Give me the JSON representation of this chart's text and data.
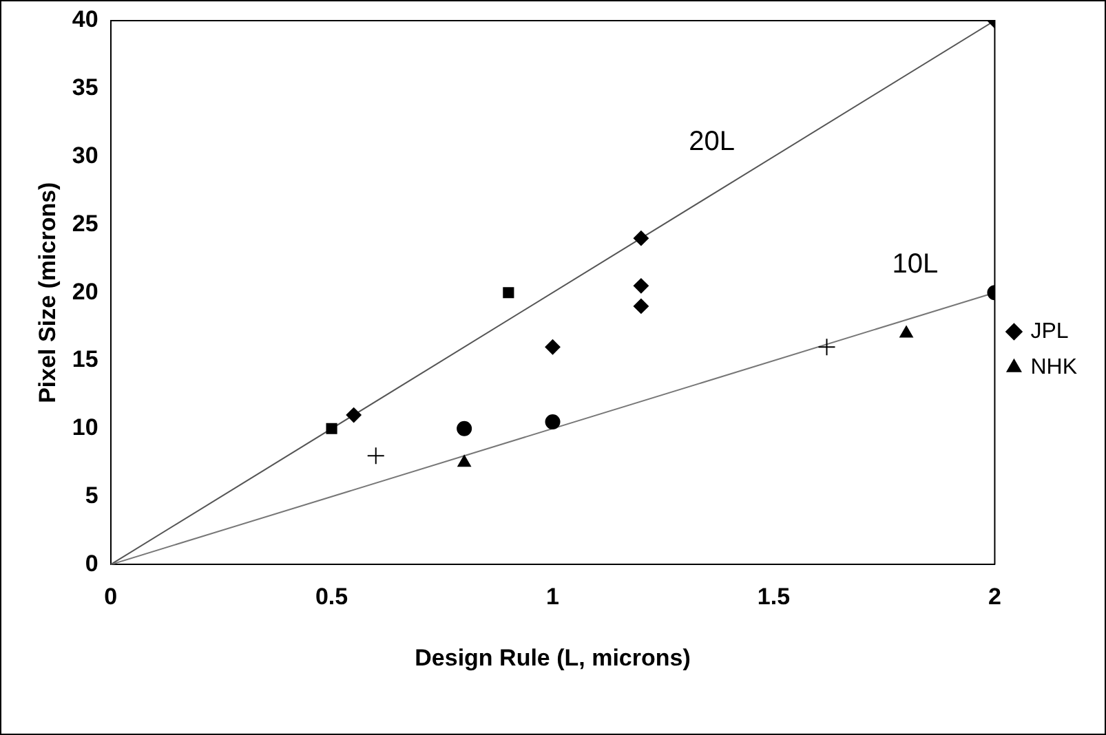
{
  "chart_data": {
    "type": "scatter",
    "xlabel": "Design Rule (L, microns)",
    "ylabel": "Pixel Size (microns)",
    "xlim": [
      0,
      2
    ],
    "xticks": [
      0,
      0.5,
      1,
      1.5,
      2
    ],
    "ylim": [
      0,
      40
    ],
    "yticks": [
      0,
      5,
      10,
      15,
      20,
      25,
      30,
      35,
      40
    ],
    "grid": false,
    "legend": "right",
    "series": [
      {
        "name": "JPL",
        "color": "#000000",
        "marker": "diamond",
        "x": [
          0.55,
          1,
          1.2,
          1.2,
          1.2,
          2
        ],
        "values": [
          11,
          16,
          24,
          20.5,
          19,
          40
        ]
      },
      {
        "color": "#000000",
        "marker": "square",
        "x": [
          0.5,
          0.9
        ],
        "values": [
          10,
          20
        ]
      },
      {
        "name": "NHK",
        "color": "#000000",
        "marker": "triangle",
        "x": [
          0.8,
          1.8
        ],
        "values": [
          7.5,
          17
        ]
      },
      {
        "color": "#000000",
        "marker": "circle",
        "x": [
          0.8,
          1,
          2
        ],
        "values": [
          10,
          10.5,
          20
        ]
      },
      {
        "color": "#000000",
        "marker": "cross",
        "x": [
          0.6
        ],
        "values": [
          8
        ]
      },
      {
        "color": "#000000",
        "marker": "cross",
        "x": [
          1.62
        ],
        "values": [
          16
        ]
      },
      {
        "type": "line",
        "color": "#555555",
        "marker": "none",
        "x": [
          0,
          2
        ],
        "values": [
          0,
          40
        ]
      },
      {
        "type": "line",
        "color": "#777777",
        "marker": "none",
        "x": [
          0,
          2
        ],
        "values": [
          0,
          20
        ]
      }
    ],
    "annotations": [
      "20L",
      "10L"
    ]
  }
}
